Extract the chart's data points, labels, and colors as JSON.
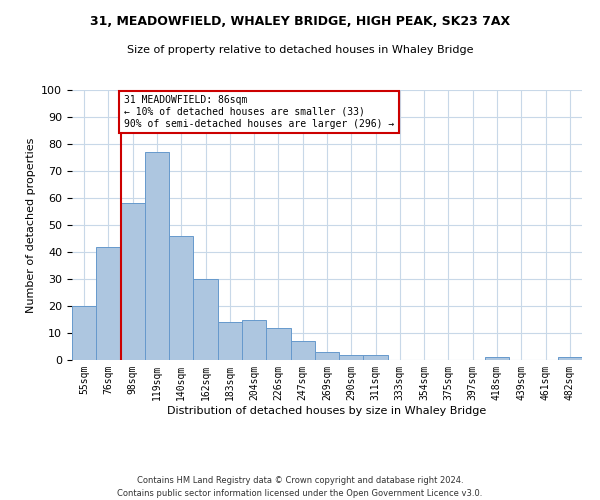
{
  "title": "31, MEADOWFIELD, WHALEY BRIDGE, HIGH PEAK, SK23 7AX",
  "subtitle": "Size of property relative to detached houses in Whaley Bridge",
  "xlabel": "Distribution of detached houses by size in Whaley Bridge",
  "ylabel": "Number of detached properties",
  "footer_line1": "Contains HM Land Registry data © Crown copyright and database right 2024.",
  "footer_line2": "Contains public sector information licensed under the Open Government Licence v3.0.",
  "bar_labels": [
    "55sqm",
    "76sqm",
    "98sqm",
    "119sqm",
    "140sqm",
    "162sqm",
    "183sqm",
    "204sqm",
    "226sqm",
    "247sqm",
    "269sqm",
    "290sqm",
    "311sqm",
    "333sqm",
    "354sqm",
    "375sqm",
    "397sqm",
    "418sqm",
    "439sqm",
    "461sqm",
    "482sqm"
  ],
  "bar_values": [
    20,
    42,
    58,
    77,
    46,
    30,
    14,
    15,
    12,
    7,
    3,
    2,
    2,
    0,
    0,
    0,
    0,
    1,
    0,
    0,
    1
  ],
  "bar_color": "#adc6e0",
  "bar_edge_color": "#6699cc",
  "ylim": [
    0,
    100
  ],
  "yticks": [
    0,
    10,
    20,
    30,
    40,
    50,
    60,
    70,
    80,
    90,
    100
  ],
  "vline_x_index": 1.5,
  "annotation_text": "31 MEADOWFIELD: 86sqm\n← 10% of detached houses are smaller (33)\n90% of semi-detached houses are larger (296) →",
  "annotation_box_color": "#ffffff",
  "annotation_box_edgecolor": "#cc0000",
  "vline_color": "#cc0000",
  "grid_color": "#c8d8e8",
  "background_color": "#ffffff"
}
